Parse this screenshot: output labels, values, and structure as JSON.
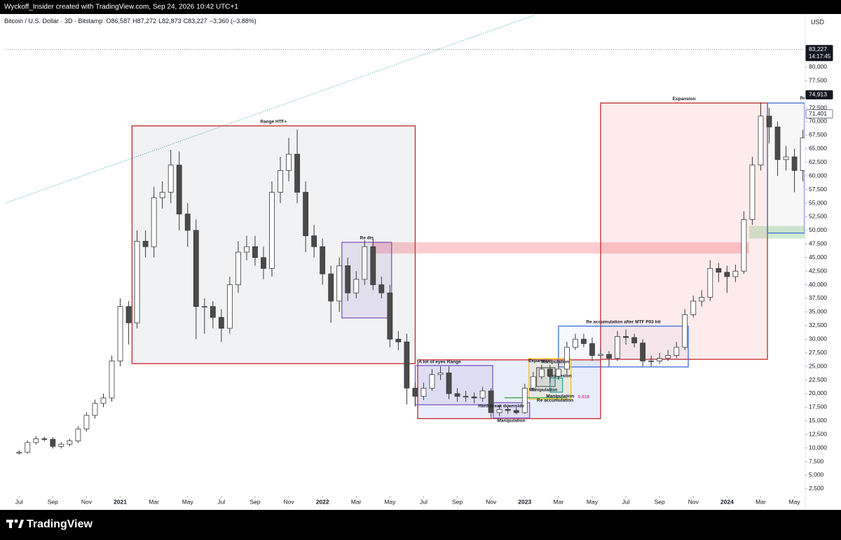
{
  "chart_data": {
    "type": "candlestick",
    "byline": "Wyckoff_Insider created with TradingView.com, Sep 24, 2026 10:42 UTC+1",
    "currency": "USD",
    "brand": "TradingView",
    "series": [
      {
        "name": "Bitcoin / U.S. Dollar · 3D · Bitstamp",
        "quote": [
          "O86,587",
          "H87,272",
          "L82,873",
          "C83,227",
          "−3,360 (−3.88%)"
        ],
        "up_color": "#ffffff",
        "down_color": "#4a4a4a",
        "edge_color": "#3a3a3a",
        "x": [
          0,
          0.5,
          1,
          1.5,
          2,
          2.5,
          3,
          3.5,
          4,
          4.5,
          5,
          5.5,
          6,
          6.5,
          7,
          7.5,
          8,
          8.5,
          9,
          9.5,
          10,
          10.5,
          11,
          11.5,
          12,
          12.5,
          13,
          13.5,
          14,
          14.5,
          15,
          15.5,
          16,
          16.5,
          17,
          17.5,
          18,
          18.5,
          19,
          19.5,
          20,
          20.5,
          21,
          21.5,
          22,
          22.5,
          23,
          23.5,
          24,
          24.5,
          25,
          25.5,
          26,
          26.5,
          27,
          27.5,
          28,
          28.5,
          29,
          29.5,
          30,
          30.5,
          31,
          31.5,
          32,
          32.5,
          33,
          33.5,
          34,
          34.5,
          35,
          35.5,
          36,
          36.5,
          37,
          37.5,
          38,
          38.5,
          39,
          39.5,
          40,
          40.5,
          41,
          41.5,
          42,
          42.5,
          43,
          43.5,
          44,
          44.5,
          45,
          45.5,
          46,
          46.5
        ],
        "open": [
          9100,
          9200,
          11000,
          11700,
          11600,
          10300,
          10700,
          11300,
          13500,
          16000,
          18200,
          19200,
          26000,
          36000,
          33000,
          48000,
          47000,
          56000,
          57000,
          62000,
          53000,
          50000,
          36000,
          36000,
          34000,
          32000,
          40000,
          46000,
          47000,
          45000,
          43000,
          57000,
          61000,
          64000,
          57000,
          49000,
          47000,
          42000,
          37000,
          43500,
          38500,
          41000,
          47000,
          40000,
          38500,
          30000,
          29500,
          21000,
          19500,
          21000,
          23500,
          23800,
          20000,
          19500,
          19400,
          19200,
          20500,
          16500,
          17100,
          16900,
          16500,
          21000,
          23100,
          24500,
          23200,
          24500,
          28500,
          30000,
          29200,
          27000,
          27200,
          26500,
          30500,
          30300,
          29300,
          26000,
          26000,
          26500,
          27000,
          28500,
          34500,
          37000,
          37700,
          43000,
          42300,
          41500,
          42500,
          52000,
          62000,
          71000,
          69000,
          63000,
          63500,
          61000
        ],
        "high": [
          9600,
          11400,
          12200,
          12100,
          12000,
          11100,
          11700,
          14000,
          16600,
          18900,
          20000,
          27000,
          37500,
          37000,
          50000,
          50000,
          58000,
          59000,
          64800,
          64500,
          55000,
          52000,
          37500,
          37000,
          35500,
          41500,
          48000,
          49000,
          49000,
          47000,
          59000,
          63500,
          67000,
          68500,
          59000,
          51000,
          48500,
          43500,
          45000,
          45000,
          42500,
          48200,
          48500,
          41500,
          40000,
          31500,
          31000,
          22000,
          22000,
          24500,
          25000,
          25000,
          21000,
          20500,
          20200,
          21200,
          21000,
          17800,
          17600,
          17400,
          21800,
          24000,
          25300,
          25300,
          25500,
          29500,
          31000,
          31000,
          30300,
          28200,
          27800,
          31500,
          31800,
          31000,
          30000,
          27000,
          27500,
          28000,
          29500,
          35500,
          38000,
          39000,
          44500,
          44000,
          43500,
          43700,
          53500,
          63500,
          73500,
          72500,
          70000,
          65500,
          65000,
          68500
        ],
        "low": [
          8800,
          8900,
          10600,
          11200,
          9900,
          9900,
          10300,
          10900,
          13000,
          15400,
          17500,
          18500,
          25000,
          29000,
          32000,
          45000,
          45000,
          54000,
          55000,
          50000,
          47000,
          30000,
          31000,
          32000,
          29500,
          31000,
          38500,
          44500,
          43500,
          41000,
          41500,
          55000,
          59000,
          55000,
          46000,
          45000,
          40000,
          33000,
          35000,
          37000,
          37500,
          40000,
          39000,
          37500,
          28500,
          28000,
          18000,
          17600,
          18800,
          20500,
          22500,
          19000,
          18500,
          18500,
          18200,
          18500,
          15500,
          15800,
          16300,
          16200,
          16300,
          20500,
          22700,
          22000,
          22500,
          23500,
          28000,
          28500,
          26000,
          26500,
          25000,
          26000,
          29000,
          28500,
          25000,
          25000,
          25500,
          26000,
          26500,
          28000,
          34000,
          36000,
          37000,
          40500,
          38500,
          40500,
          42000,
          51000,
          61000,
          66000,
          60000,
          61000,
          57000,
          59000
        ],
        "close": [
          9200,
          11000,
          11700,
          11600,
          10300,
          10700,
          11300,
          13500,
          16000,
          18200,
          19200,
          26000,
          36000,
          33000,
          48000,
          47000,
          56000,
          57000,
          62000,
          53000,
          50000,
          36000,
          36000,
          34000,
          32000,
          40000,
          46000,
          47000,
          45000,
          43000,
          57000,
          61000,
          64000,
          57000,
          49000,
          47000,
          42000,
          37000,
          43500,
          38500,
          41000,
          47000,
          40000,
          38500,
          30000,
          29500,
          21000,
          19500,
          21000,
          23500,
          23800,
          20000,
          19500,
          19400,
          19200,
          20500,
          16500,
          17100,
          16900,
          16500,
          21000,
          23100,
          24500,
          23200,
          24500,
          28500,
          30000,
          29200,
          27000,
          27200,
          26500,
          30500,
          30300,
          29300,
          26000,
          26000,
          26500,
          27000,
          28500,
          34500,
          37000,
          37700,
          43000,
          42300,
          41500,
          42500,
          52000,
          62000,
          71000,
          69000,
          63000,
          63500,
          61000,
          67000
        ]
      }
    ],
    "xlim": [
      -0.8,
      46.6
    ],
    "xticks": [
      {
        "value": 0,
        "label": "Jul"
      },
      {
        "value": 2,
        "label": "Sep"
      },
      {
        "value": 4,
        "label": "Nov"
      },
      {
        "value": 6,
        "label": "2021"
      },
      {
        "value": 8,
        "label": "Mar"
      },
      {
        "value": 10,
        "label": "May"
      },
      {
        "value": 12,
        "label": "Jul"
      },
      {
        "value": 14,
        "label": "Sep"
      },
      {
        "value": 16,
        "label": "Nov"
      },
      {
        "value": 18,
        "label": "2022"
      },
      {
        "value": 20,
        "label": "Mar"
      },
      {
        "value": 22,
        "label": "May"
      },
      {
        "value": 24,
        "label": "Jul"
      },
      {
        "value": 26,
        "label": "Sep"
      },
      {
        "value": 28,
        "label": "Nov"
      },
      {
        "value": 30,
        "label": "2023"
      },
      {
        "value": 32,
        "label": "Mar"
      },
      {
        "value": 34,
        "label": "May"
      },
      {
        "value": 36,
        "label": "Jul"
      },
      {
        "value": 38,
        "label": "Sep"
      },
      {
        "value": 40,
        "label": "Nov"
      },
      {
        "value": 42,
        "label": "2024"
      },
      {
        "value": 44,
        "label": "Mar"
      },
      {
        "value": 46,
        "label": "May"
      }
    ],
    "ylim": [
      -600,
      89500
    ],
    "yticks": [
      {
        "value": 2500,
        "label": "2,500"
      },
      {
        "value": 5000,
        "label": "5,000"
      },
      {
        "value": 7500,
        "label": "7,500"
      },
      {
        "value": 10000,
        "label": "10,000"
      },
      {
        "value": 12500,
        "label": "12,500"
      },
      {
        "value": 15000,
        "label": "15,000"
      },
      {
        "value": 17500,
        "label": "17,500"
      },
      {
        "value": 20000,
        "label": "20,000"
      },
      {
        "value": 22500,
        "label": "22,500"
      },
      {
        "value": 25000,
        "label": "25,000"
      },
      {
        "value": 27500,
        "label": "27,500"
      },
      {
        "value": 30000,
        "label": "30,000"
      },
      {
        "value": 32500,
        "label": "32,500"
      },
      {
        "value": 35000,
        "label": "35,000"
      },
      {
        "value": 37500,
        "label": "37,500"
      },
      {
        "value": 40000,
        "label": "40,000"
      },
      {
        "value": 42500,
        "label": "42,500"
      },
      {
        "value": 45000,
        "label": "45,000"
      },
      {
        "value": 47500,
        "label": "47,500"
      },
      {
        "value": 50000,
        "label": "50,000"
      },
      {
        "value": 52500,
        "label": "52,500"
      },
      {
        "value": 55000,
        "label": "55,000"
      },
      {
        "value": 57500,
        "label": "57,500"
      },
      {
        "value": 60000,
        "label": "60,000"
      },
      {
        "value": 62500,
        "label": "62,500"
      },
      {
        "value": 65000,
        "label": "65,000"
      },
      {
        "value": 67500,
        "label": "67,500"
      },
      {
        "value": 70000,
        "label": "70,000"
      },
      {
        "value": 72500,
        "label": "72,500"
      },
      {
        "value": 75000,
        "label": "75,000"
      },
      {
        "value": 77500,
        "label": "77,500"
      },
      {
        "value": 80000,
        "label": "80,000"
      }
    ],
    "grid": false,
    "price_tags": [
      {
        "value": 83227,
        "label": "83,227",
        "time": "14:17:45",
        "bg": "#131722",
        "fg": "#ffffff",
        "line": true
      },
      {
        "value": 74913,
        "label": "74,913",
        "bg": "#131722",
        "fg": "#ffffff"
      },
      {
        "value": 71401,
        "label": "71,401",
        "bg": "#ffffff",
        "fg": "#131722"
      }
    ],
    "drawings": [
      {
        "kind": "trendline",
        "x": [
          -0.8,
          31
        ],
        "y": [
          55000,
          90000
        ],
        "color": "#26a69a"
      },
      {
        "kind": "box",
        "x": [
          6.7,
          23.5
        ],
        "y": [
          25500,
          69200
        ],
        "stroke": "#c62828",
        "fill": "rgba(120,123,134,0.1)",
        "label": "Range HTF+"
      },
      {
        "kind": "box",
        "x": [
          20.9,
          43.3
        ],
        "y": [
          45750,
          47800
        ],
        "stroke": "none",
        "fill": "rgba(242,54,69,0.25)"
      },
      {
        "kind": "box",
        "x": [
          19.15,
          22.1
        ],
        "y": [
          33900,
          47800
        ],
        "stroke": "#7e57c2",
        "fill": "rgba(126,87,194,0.12)",
        "label": "Re dis"
      },
      {
        "kind": "box",
        "x": [
          34.5,
          44.4
        ],
        "y": [
          26300,
          73400
        ],
        "stroke": "#c62828",
        "fill": "rgba(242,54,69,0.1)",
        "label": "Expansion"
      },
      {
        "kind": "box",
        "x": [
          32.0,
          39.7
        ],
        "y": [
          24900,
          32400
        ],
        "stroke": "#3f6fd8",
        "fill": "rgba(63,111,216,0.05)",
        "label": "Re accumulation after MTF P03 hit"
      },
      {
        "kind": "box",
        "x": [
          23.65,
          34.5
        ],
        "y": [
          15400,
          26200
        ],
        "stroke": "#c62828",
        "fill": "rgba(63,111,216,0.12)",
        "label": "Range",
        "label_at": [
          25.8,
          25800
        ]
      },
      {
        "kind": "box",
        "x": [
          23.5,
          28.1
        ],
        "y": [
          17950,
          25160
        ],
        "stroke": "#7e57c2",
        "fill": "rgba(126,87,194,0.1)",
        "label": "A lot of eyes",
        "label_at": [
          24.5,
          25800
        ]
      },
      {
        "kind": "box",
        "x": [
          28.13,
          30.29
        ],
        "y": [
          15500,
          18330
        ],
        "stroke": "#7e57c2",
        "fill": "rgba(126,87,194,0.1)",
        "label": "Manipulation",
        "label_at": [
          29.2,
          15000
        ]
      },
      {
        "kind": "text",
        "at": [
          28.6,
          17700
        ],
        "label": "Hard break downside"
      },
      {
        "kind": "box",
        "x": [
          30.25,
          32.74
        ],
        "y": [
          18980,
          26440
        ],
        "stroke": "#f0c419",
        "fill": "rgba(240,196,25,0.1)",
        "label": "Expansion",
        "label_at": [
          30.9,
          26000
        ]
      },
      {
        "kind": "box",
        "x": [
          30.7,
          31.8
        ],
        "y": [
          21300,
          24770
        ],
        "stroke": "#666666",
        "fill": "rgba(120,123,134,0.15)",
        "label": "Expansion",
        "label_at": [
          32.1,
          23230
        ]
      },
      {
        "kind": "box",
        "x": [
          31.5,
          32.24
        ],
        "y": [
          20260,
          22840
        ],
        "stroke": "#26a69a",
        "fill": "rgba(38,166,154,0.12)"
      },
      {
        "kind": "text",
        "at": [
          31.8,
          25800
        ],
        "label": "Manipulation"
      },
      {
        "kind": "text",
        "at": [
          31.1,
          20650
        ],
        "label": "Manipulation"
      },
      {
        "kind": "text",
        "at": [
          32.1,
          19500
        ],
        "label": "Manipulation"
      },
      {
        "kind": "text",
        "at": [
          33.5,
          19360
        ],
        "label": "0.618",
        "color": "#e040a0"
      },
      {
        "kind": "text",
        "at": [
          31.8,
          18720
        ],
        "label": "Re accumulation"
      },
      {
        "kind": "hline",
        "x": [
          28.8,
          32.5
        ],
        "y": 19240,
        "color": "#4caf50"
      },
      {
        "kind": "box",
        "x": [
          43.3,
          46.6
        ],
        "y": [
          48500,
          50800
        ],
        "stroke": "none",
        "fill": "rgba(76,175,80,0.25)"
      },
      {
        "kind": "box",
        "x": [
          44.4,
          46.6
        ],
        "y": [
          49500,
          73400
        ],
        "stroke": "#3f6fd8",
        "fill": "rgba(120,123,134,0.06)",
        "label": "Re",
        "label_at": [
          46.5,
          74300
        ]
      }
    ]
  }
}
